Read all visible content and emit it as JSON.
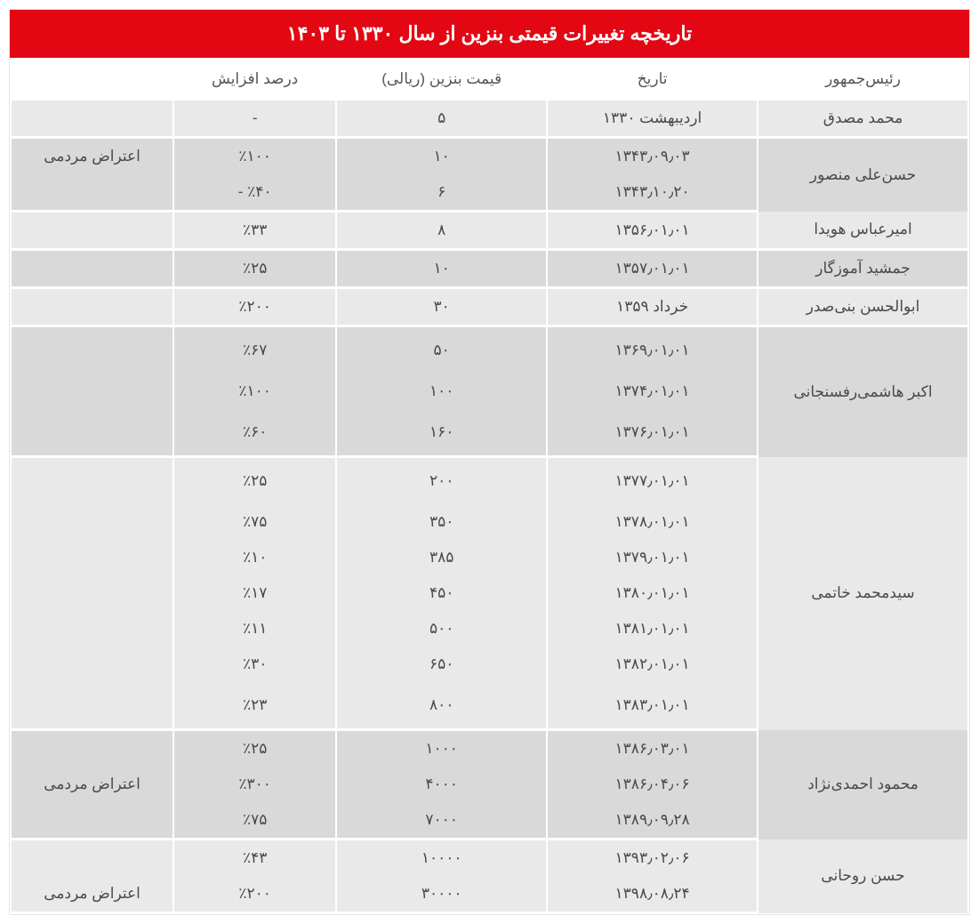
{
  "title": "تاریخچه تغییرات قیمتی بنزین از سال ۱۳۳۰ تا ۱۴۰۳",
  "columns": {
    "president": "رئیس‌جمهور",
    "date": "تاریخ",
    "price": "قیمت بنزین (ریالی)",
    "pct": "درصد افزایش",
    "note": ""
  },
  "note_label": "اعتراض مردمی",
  "rows": [
    {
      "president": "محمد مصدق",
      "date": "اردیبهشت ۱۳۳۰",
      "price": "۵",
      "pct": "-",
      "note": "",
      "bg": "a",
      "group_start": true,
      "group_end": true,
      "rowspan": 1
    },
    {
      "president": "حسن‌علی منصور",
      "date": "۱۳۴۳٫۰۹٫۰۳",
      "price": "۱۰",
      "pct": "٪۱۰۰",
      "note": "اعتراض مردمی",
      "bg": "b",
      "group_start": true,
      "rowspan": 2
    },
    {
      "date": "۱۳۴۳٫۱۰٫۲۰",
      "price": "۶",
      "pct": "٪۴۰ -",
      "note": "",
      "bg": "b",
      "group_end": true
    },
    {
      "president": "امیرعباس هویدا",
      "date": "۱۳۵۶٫۰۱٫۰۱",
      "price": "۸",
      "pct": "٪۳۳",
      "note": "",
      "bg": "a",
      "group_start": true,
      "group_end": true,
      "rowspan": 1
    },
    {
      "president": "جمشید آموزگار",
      "date": "۱۳۵۷٫۰۱٫۰۱",
      "price": "۱۰",
      "pct": "٪۲۵",
      "note": "",
      "bg": "b",
      "group_start": true,
      "group_end": true,
      "rowspan": 1
    },
    {
      "president": "ابوالحسن بنی‌صدر",
      "date": "خرداد ۱۳۵۹",
      "price": "۳۰",
      "pct": "٪۲۰۰",
      "note": "",
      "bg": "a",
      "group_start": true,
      "group_end": true,
      "rowspan": 1
    },
    {
      "president": "اکبر هاشمی‌رفسنجانی",
      "date": "۱۳۶۹٫۰۱٫۰۱",
      "price": "۵۰",
      "pct": "٪۶۷",
      "note": "",
      "bg": "b",
      "group_start": true,
      "rowspan": 3,
      "pad": true
    },
    {
      "date": "۱۳۷۴٫۰۱٫۰۱",
      "price": "۱۰۰",
      "pct": "٪۱۰۰",
      "note": "",
      "bg": "b"
    },
    {
      "date": "۱۳۷۶٫۰۱٫۰۱",
      "price": "۱۶۰",
      "pct": "٪۶۰",
      "note": "",
      "bg": "b",
      "group_end": true,
      "pad": true
    },
    {
      "president": "سیدمحمد خاتمی",
      "date": "۱۳۷۷٫۰۱٫۰۱",
      "price": "۲۰۰",
      "pct": "٪۲۵",
      "note": "",
      "bg": "a",
      "group_start": true,
      "rowspan": 7,
      "pad": true
    },
    {
      "date": "۱۳۷۸٫۰۱٫۰۱",
      "price": "۳۵۰",
      "pct": "٪۷۵",
      "note": "",
      "bg": "a"
    },
    {
      "date": "۱۳۷۹٫۰۱٫۰۱",
      "price": "۳۸۵",
      "pct": "٪۱۰",
      "note": "",
      "bg": "a"
    },
    {
      "date": "۱۳۸۰٫۰۱٫۰۱",
      "price": "۴۵۰",
      "pct": "٪۱۷",
      "note": "",
      "bg": "a"
    },
    {
      "date": "۱۳۸۱٫۰۱٫۰۱",
      "price": "۵۰۰",
      "pct": "٪۱۱",
      "note": "",
      "bg": "a"
    },
    {
      "date": "۱۳۸۲٫۰۱٫۰۱",
      "price": "۶۵۰",
      "pct": "٪۳۰",
      "note": "",
      "bg": "a"
    },
    {
      "date": "۱۳۸۳٫۰۱٫۰۱",
      "price": "۸۰۰",
      "pct": "٪۲۳",
      "note": "",
      "bg": "a",
      "group_end": true,
      "pad": true
    },
    {
      "president": "محمود احمدی‌نژاد",
      "date": "۱۳۸۶٫۰۳٫۰۱",
      "price": "۱۰۰۰",
      "pct": "٪۲۵",
      "note": "",
      "bg": "b",
      "group_start": true,
      "rowspan": 3
    },
    {
      "date": "۱۳۸۶٫۰۴٫۰۶",
      "price": "۴۰۰۰",
      "pct": "٪۳۰۰",
      "note": "اعتراض مردمی",
      "bg": "b"
    },
    {
      "date": "۱۳۸۹٫۰۹٫۲۸",
      "price": "۷۰۰۰",
      "pct": "٪۷۵",
      "note": "",
      "bg": "b",
      "group_end": true
    },
    {
      "president": "حسن روحانی",
      "date": "۱۳۹۳٫۰۲٫۰۶",
      "price": "۱۰۰۰۰",
      "pct": "٪۴۳",
      "note": "",
      "bg": "a",
      "group_start": true,
      "rowspan": 2
    },
    {
      "date": "۱۳۹۸٫۰۸٫۲۴",
      "price": "۳۰۰۰۰",
      "pct": "٪۲۰۰",
      "note": "اعتراض مردمی",
      "bg": "a",
      "group_end": true
    }
  ]
}
